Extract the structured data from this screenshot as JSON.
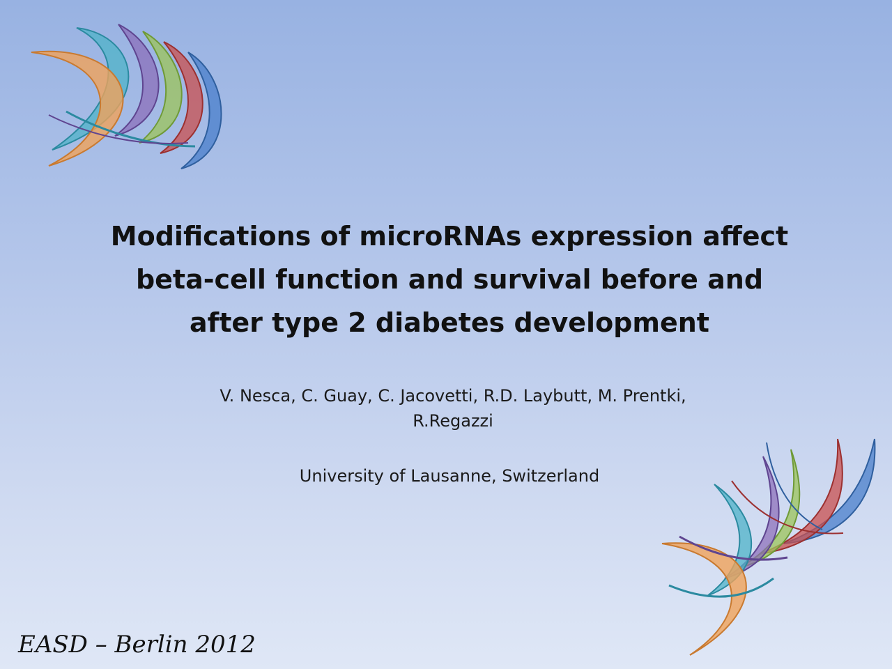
{
  "slide": {
    "title_lines": [
      "Modifications of microRNAs expression affect",
      "beta-cell function and survival before and",
      "after type 2 diabetes development"
    ],
    "authors_lines": [
      "V. Nesca, C. Guay, C. Jacovetti, R.D. Laybutt, M. Prentki,",
      "R.Regazzi"
    ],
    "affiliation": "University of Lausanne, Switzerland",
    "footer": "EASD – Berlin 2012"
  },
  "decoration": {
    "swoosh_colors": {
      "orange": "#f0a35a",
      "teal": "#4fb3c8",
      "purple": "#8a6bb8",
      "green": "#9cc45a",
      "red": "#c9504f",
      "blue": "#4a7fcb"
    }
  }
}
